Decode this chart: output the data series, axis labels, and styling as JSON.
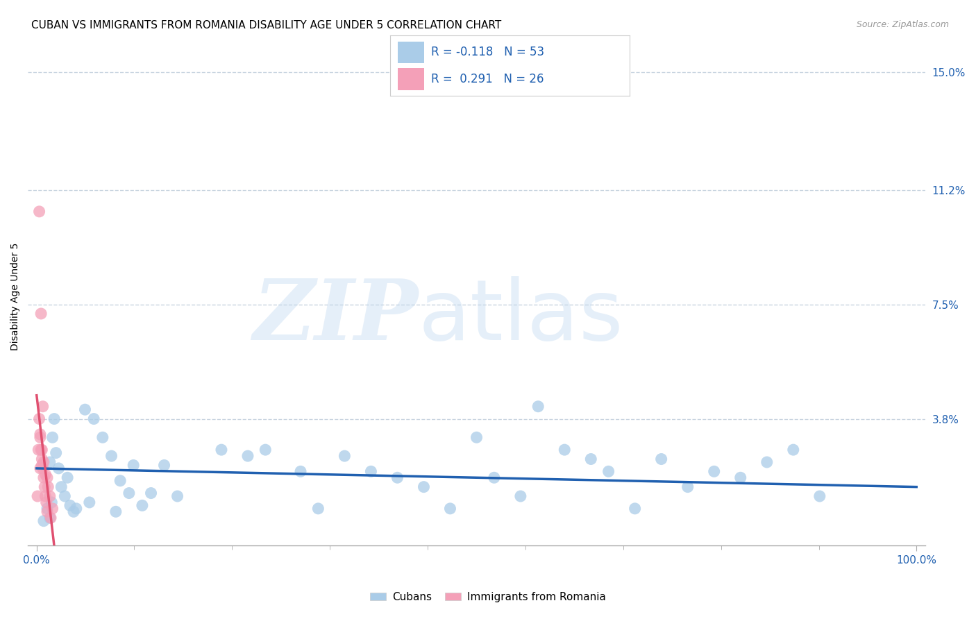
{
  "title": "CUBAN VS IMMIGRANTS FROM ROMANIA DISABILITY AGE UNDER 5 CORRELATION CHART",
  "source": "Source: ZipAtlas.com",
  "ylabel": "Disability Age Under 5",
  "xlim": [
    -0.01,
    1.01
  ],
  "ylim": [
    -0.003,
    0.158
  ],
  "ytick_vals": [
    0.038,
    0.075,
    0.112,
    0.15
  ],
  "ytick_labels": [
    "3.8%",
    "7.5%",
    "11.2%",
    "15.0%"
  ],
  "xtick_vals": [
    0.0,
    1.0
  ],
  "xtick_labels": [
    "0.0%",
    "100.0%"
  ],
  "xtick_minor": [
    0.111,
    0.222,
    0.333,
    0.444,
    0.556,
    0.667,
    0.778,
    0.889
  ],
  "cubans_R": -0.118,
  "cubans_N": 53,
  "romania_R": 0.291,
  "romania_N": 26,
  "cubans_color": "#aacce8",
  "cubans_line_color": "#2060b0",
  "romania_color": "#f4a0b8",
  "romania_line_color": "#e05070",
  "background_color": "#ffffff",
  "grid_color": "#c8d4e0",
  "cubans_x": [
    0.018,
    0.022,
    0.025,
    0.028,
    0.032,
    0.035,
    0.038,
    0.042,
    0.015,
    0.02,
    0.055,
    0.065,
    0.075,
    0.085,
    0.095,
    0.11,
    0.13,
    0.145,
    0.16,
    0.21,
    0.24,
    0.26,
    0.3,
    0.32,
    0.35,
    0.38,
    0.41,
    0.44,
    0.47,
    0.5,
    0.52,
    0.55,
    0.57,
    0.6,
    0.63,
    0.65,
    0.68,
    0.71,
    0.74,
    0.77,
    0.8,
    0.83,
    0.86,
    0.89,
    0.012,
    0.017,
    0.008,
    0.045,
    0.06,
    0.09,
    0.105,
    0.12,
    0.015
  ],
  "cubans_y": [
    0.032,
    0.027,
    0.022,
    0.016,
    0.013,
    0.019,
    0.01,
    0.008,
    0.024,
    0.038,
    0.041,
    0.038,
    0.032,
    0.026,
    0.018,
    0.023,
    0.014,
    0.023,
    0.013,
    0.028,
    0.026,
    0.028,
    0.021,
    0.009,
    0.026,
    0.021,
    0.019,
    0.016,
    0.009,
    0.032,
    0.019,
    0.013,
    0.042,
    0.028,
    0.025,
    0.021,
    0.009,
    0.025,
    0.016,
    0.021,
    0.019,
    0.024,
    0.028,
    0.013,
    0.009,
    0.011,
    0.005,
    0.009,
    0.011,
    0.008,
    0.014,
    0.01,
    0.006
  ],
  "romania_x": [
    0.003,
    0.004,
    0.005,
    0.006,
    0.007,
    0.008,
    0.009,
    0.01,
    0.011,
    0.012,
    0.004,
    0.006,
    0.008,
    0.01,
    0.013,
    0.015,
    0.018,
    0.003,
    0.005,
    0.007,
    0.002,
    0.004,
    0.001,
    0.006,
    0.012,
    0.016
  ],
  "romania_y": [
    0.038,
    0.032,
    0.028,
    0.025,
    0.022,
    0.019,
    0.016,
    0.013,
    0.011,
    0.008,
    0.033,
    0.028,
    0.024,
    0.02,
    0.016,
    0.013,
    0.009,
    0.105,
    0.072,
    0.042,
    0.028,
    0.022,
    0.013,
    0.023,
    0.019,
    0.006
  ],
  "title_fontsize": 11,
  "axis_label_fontsize": 10,
  "tick_fontsize": 11,
  "legend_fontsize": 12,
  "source_fontsize": 9
}
